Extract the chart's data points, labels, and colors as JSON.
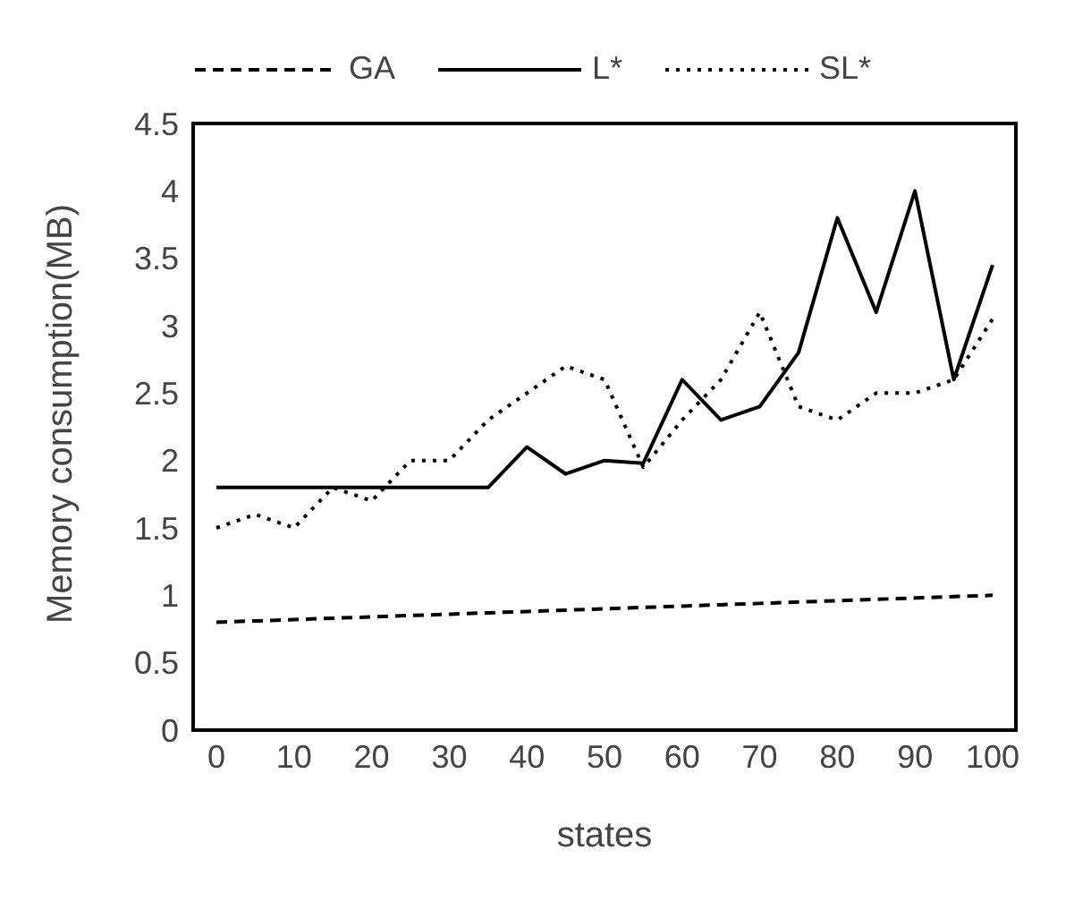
{
  "chart_data": {
    "type": "line",
    "xlabel": "states",
    "ylabel": "Memory consumption(MB)",
    "x": [
      0,
      5,
      10,
      15,
      20,
      25,
      30,
      35,
      40,
      45,
      50,
      55,
      60,
      65,
      70,
      75,
      80,
      85,
      90,
      95,
      100
    ],
    "series": [
      {
        "name": "GA",
        "color": "#000000",
        "line_style": "dashed",
        "values": [
          0.8,
          0.81,
          0.82,
          0.83,
          0.84,
          0.85,
          0.86,
          0.87,
          0.88,
          0.89,
          0.9,
          0.91,
          0.92,
          0.93,
          0.94,
          0.95,
          0.96,
          0.97,
          0.98,
          0.99,
          1.0
        ]
      },
      {
        "name": "L*",
        "color": "#000000",
        "line_style": "solid",
        "values": [
          1.8,
          1.8,
          1.8,
          1.8,
          1.8,
          1.8,
          1.8,
          1.8,
          2.1,
          1.9,
          2.0,
          1.98,
          2.6,
          2.3,
          2.4,
          2.8,
          3.8,
          3.1,
          4.0,
          2.6,
          3.45
        ]
      },
      {
        "name": "SL*",
        "color": "#000000",
        "line_style": "dotted",
        "values": [
          1.5,
          1.6,
          1.5,
          1.8,
          1.7,
          2.0,
          2.0,
          2.3,
          2.5,
          2.7,
          2.6,
          1.95,
          2.3,
          2.6,
          3.1,
          2.4,
          2.3,
          2.5,
          2.5,
          2.6,
          3.05
        ]
      }
    ],
    "xlim": [
      -3,
      103
    ],
    "xticks": [
      0,
      10,
      20,
      30,
      40,
      50,
      60,
      70,
      80,
      90,
      100
    ],
    "ylim": [
      0,
      4.5
    ],
    "yticks": [
      0,
      0.5,
      1,
      1.5,
      2,
      2.5,
      3,
      3.5,
      4,
      4.5
    ],
    "grid": false,
    "legend": "top",
    "marker": "none"
  }
}
